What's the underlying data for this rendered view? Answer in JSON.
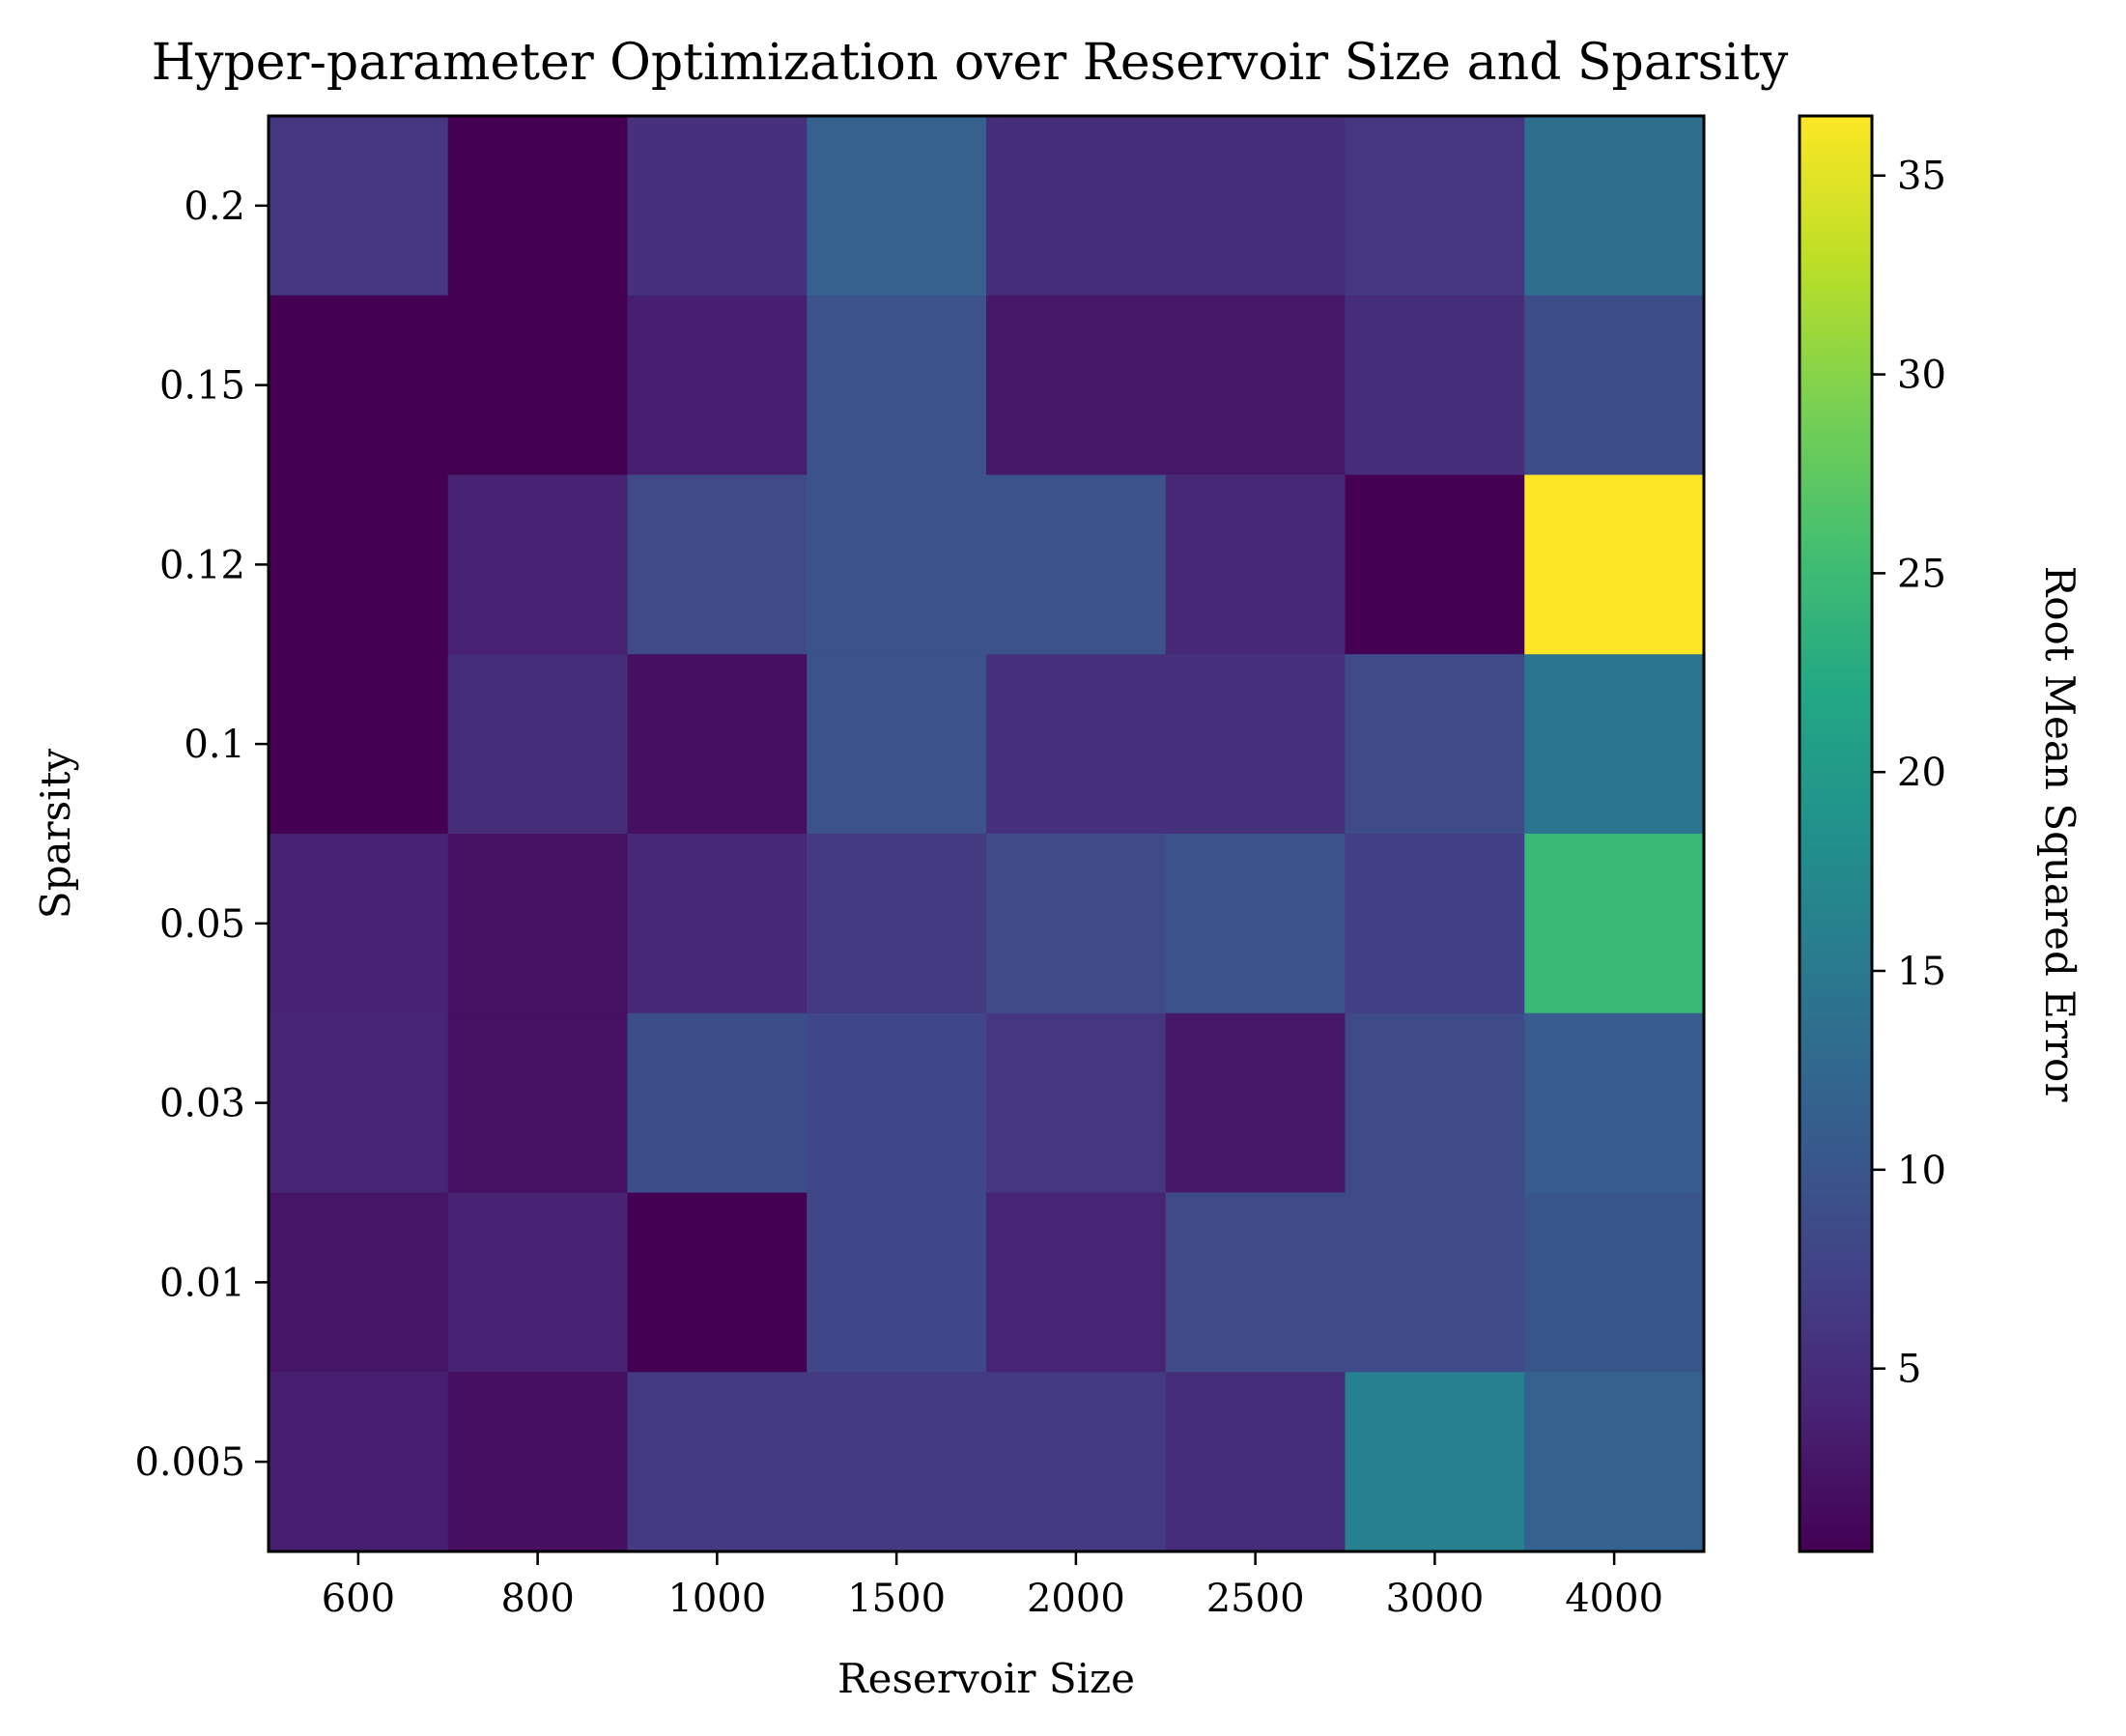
{
  "chart_data": {
    "type": "heatmap",
    "title": "Hyper-parameter Optimization over Reservoir Size and Sparsity",
    "xlabel": "Reservoir Size",
    "ylabel": "Sparsity",
    "x_categories": [
      "600",
      "800",
      "1000",
      "1500",
      "2000",
      "2500",
      "3000",
      "4000"
    ],
    "y_categories": [
      "0.2",
      "0.15",
      "0.12",
      "0.1",
      "0.05",
      "0.03",
      "0.01",
      "0.005"
    ],
    "values": [
      [
        6.0,
        0.4,
        5.5,
        11.5,
        5.0,
        5.0,
        6.0,
        13.5
      ],
      [
        0.4,
        0.4,
        3.5,
        9.5,
        2.8,
        2.8,
        5.0,
        9.0
      ],
      [
        0.4,
        3.8,
        8.5,
        9.5,
        9.5,
        4.5,
        0.4,
        36.5
      ],
      [
        0.4,
        5.0,
        1.8,
        9.5,
        5.5,
        5.5,
        8.5,
        14.5
      ],
      [
        3.8,
        2.0,
        4.5,
        6.5,
        8.5,
        9.5,
        7.0,
        24.5
      ],
      [
        4.2,
        2.0,
        9.0,
        8.0,
        6.0,
        2.8,
        8.5,
        11.0
      ],
      [
        2.5,
        3.8,
        0.4,
        8.0,
        4.0,
        8.5,
        8.5,
        10.0
      ],
      [
        3.5,
        1.8,
        6.5,
        6.5,
        6.5,
        5.0,
        16.0,
        11.5
      ]
    ],
    "colorbar": {
      "label": "Root Mean Squared Error",
      "ticks": [
        "5",
        "10",
        "15",
        "20",
        "25",
        "30",
        "35"
      ],
      "tick_values": [
        5,
        10,
        15,
        20,
        25,
        30,
        35
      ],
      "range": [
        0.4,
        36.5
      ],
      "colormap": "viridis"
    },
    "grid": false,
    "legend": "none"
  }
}
